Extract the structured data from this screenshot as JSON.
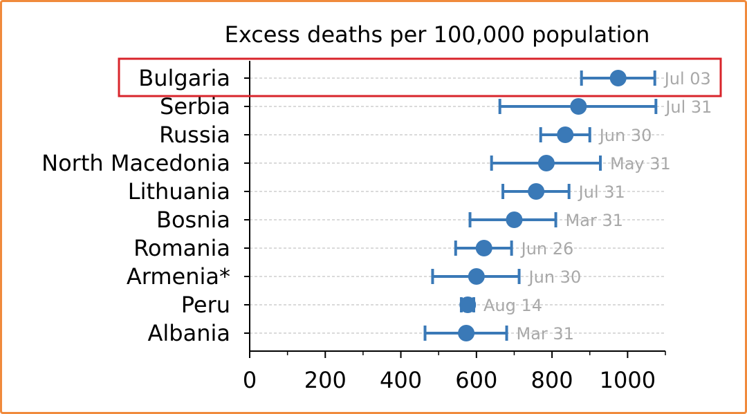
{
  "chart_data": {
    "type": "scatter",
    "title": "Excess deaths per 100,000 population",
    "xlabel": "",
    "ylabel": "",
    "xlim": [
      0,
      1100
    ],
    "x_ticks": [
      0,
      200,
      400,
      600,
      800,
      1000
    ],
    "x_minor_ticks": [
      100,
      300,
      500,
      700,
      900,
      1100
    ],
    "grid": "horizontal dashed",
    "categories": [
      "Bulgaria",
      "Serbia",
      "Russia",
      "North Macedonia",
      "Lithuania",
      "Bosnia",
      "Romania",
      "Armenia*",
      "Peru",
      "Albania"
    ],
    "points": [
      {
        "label": "Bulgaria",
        "value": 975,
        "low": 878,
        "high": 1072,
        "date": "Jul 03"
      },
      {
        "label": "Serbia",
        "value": 870,
        "low": 662,
        "high": 1075,
        "date": "Jul 31"
      },
      {
        "label": "Russia",
        "value": 835,
        "low": 770,
        "high": 900,
        "date": "Jun 30"
      },
      {
        "label": "North Macedonia",
        "value": 785,
        "low": 640,
        "high": 928,
        "date": "May 31"
      },
      {
        "label": "Lithuania",
        "value": 758,
        "low": 670,
        "high": 845,
        "date": "Jul 31"
      },
      {
        "label": "Bosnia",
        "value": 700,
        "low": 583,
        "high": 810,
        "date": "Mar 31"
      },
      {
        "label": "Romania",
        "value": 620,
        "low": 545,
        "high": 693,
        "date": "Jun 26"
      },
      {
        "label": "Armenia*",
        "value": 600,
        "low": 484,
        "high": 713,
        "date": "Jun 30"
      },
      {
        "label": "Peru",
        "value": 577,
        "low": 560,
        "high": 593,
        "date": "Aug 14"
      },
      {
        "label": "Albania",
        "value": 573,
        "low": 464,
        "high": 680,
        "date": "Mar 31"
      }
    ],
    "highlight": "Bulgaria",
    "colors": {
      "series": "#3a79b7",
      "date_label": "#a8a8a8",
      "grid": "#c4c4c4",
      "highlight": "#d8242b",
      "frame": "#f08a3c",
      "axis": "#000000"
    }
  }
}
